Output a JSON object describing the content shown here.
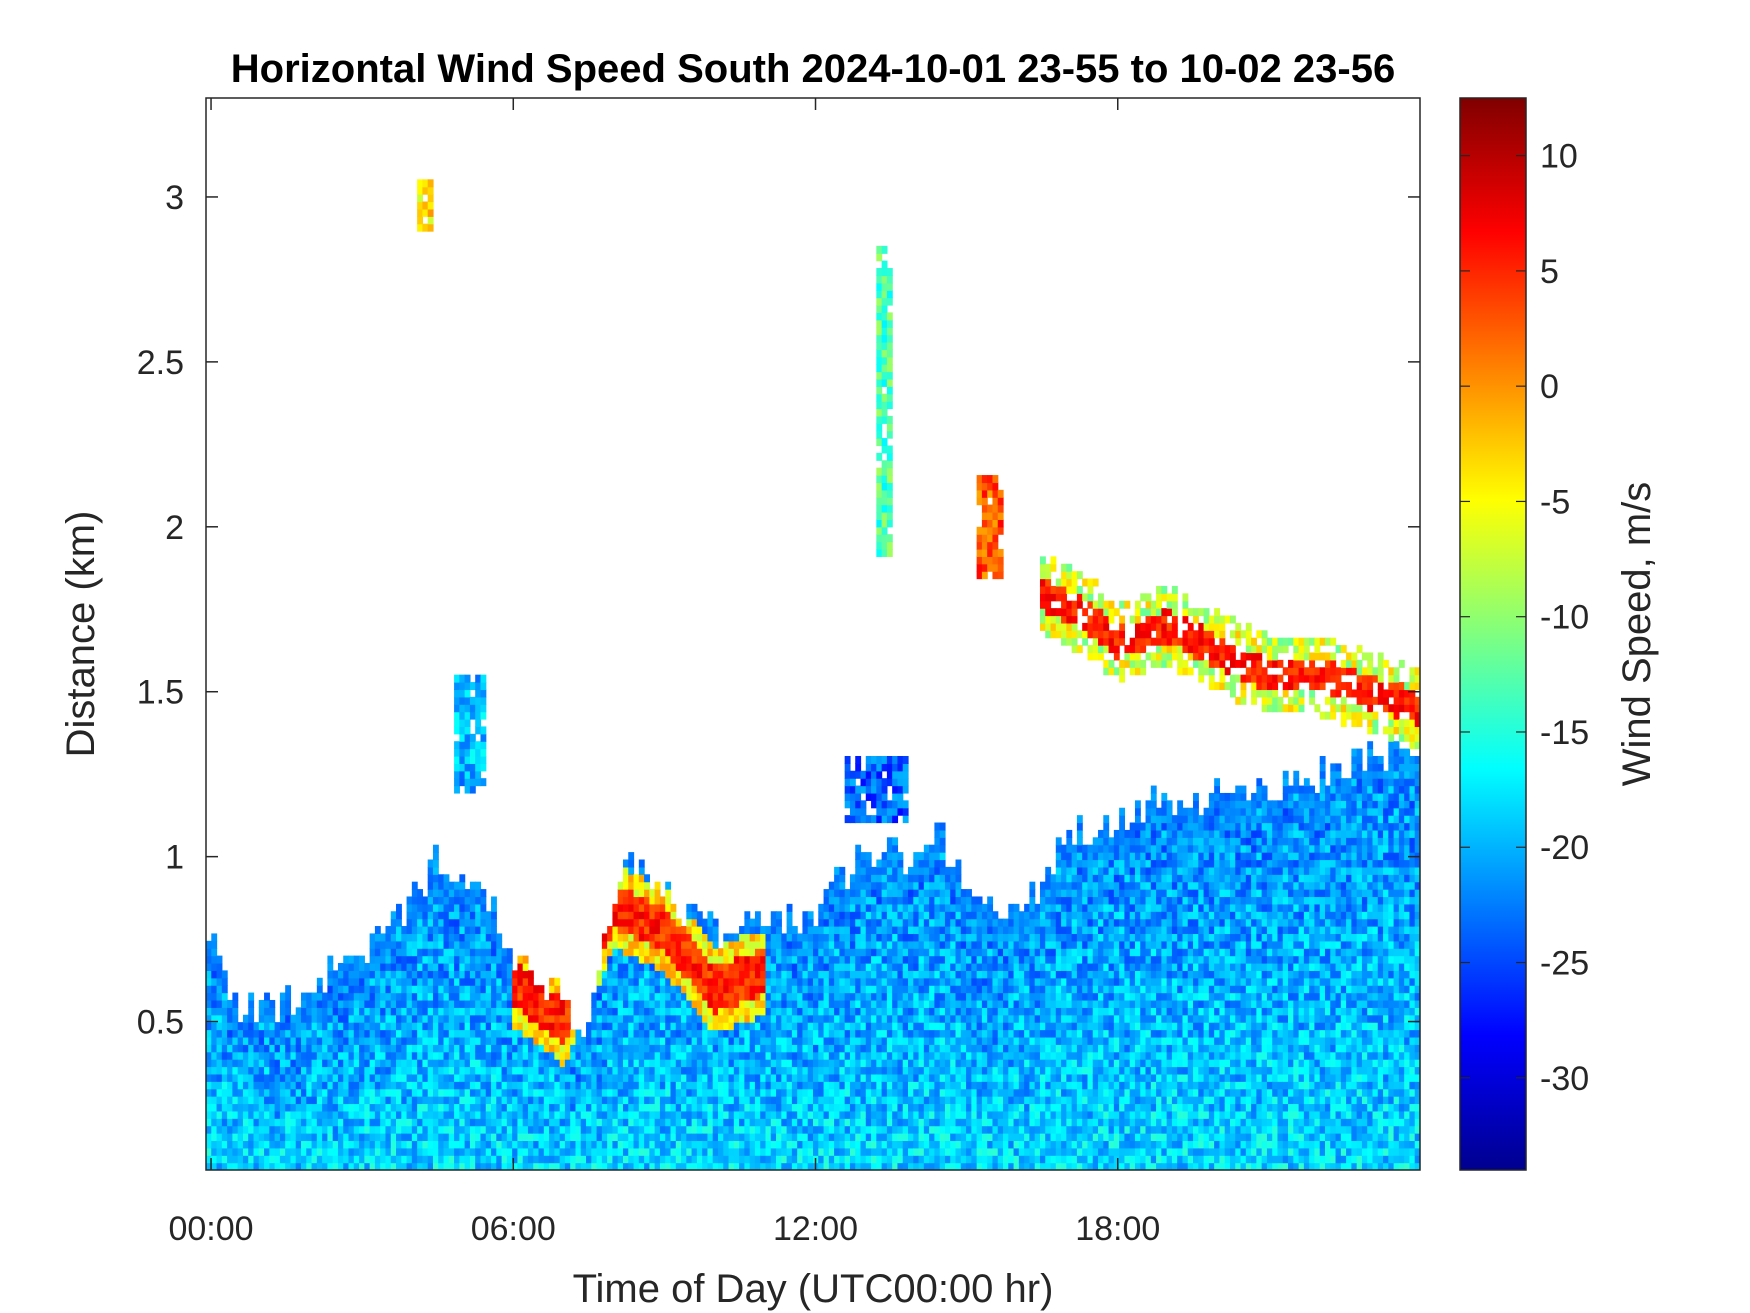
{
  "chart_data": {
    "type": "heatmap",
    "title": "Horizontal Wind Speed South 2024-10-01 23-55 to 10-02 23-56",
    "xlabel": "Time of Day (UTC00:00 hr)",
    "ylabel": "Distance (km)",
    "colorbar_label": "Wind Speed, m/s",
    "colormap": "jet",
    "x_ticks": [
      "00:00",
      "06:00",
      "12:00",
      "18:00"
    ],
    "x_tick_hours": [
      0,
      6,
      12,
      18
    ],
    "xlim_hours": [
      -0.1,
      24.0
    ],
    "y_ticks": [
      "0.5",
      "1",
      "1.5",
      "2",
      "2.5",
      "3"
    ],
    "y_tick_values": [
      0.5,
      1,
      1.5,
      2,
      2.5,
      3
    ],
    "ylim": [
      0.05,
      3.3
    ],
    "color_ticks": [
      "10",
      "5",
      "0",
      "-5",
      "-10",
      "-15",
      "-20",
      "-25",
      "-30"
    ],
    "color_tick_values": [
      10,
      5,
      0,
      -5,
      -10,
      -15,
      -20,
      -25,
      -30
    ],
    "clim": [
      -34,
      12.5
    ],
    "boundary_layer_top_km": [
      [
        0.0,
        0.72
      ],
      [
        0.5,
        0.55
      ],
      [
        1.0,
        0.52
      ],
      [
        1.5,
        0.55
      ],
      [
        2.0,
        0.6
      ],
      [
        2.5,
        0.66
      ],
      [
        3.0,
        0.72
      ],
      [
        3.5,
        0.8
      ],
      [
        4.0,
        0.87
      ],
      [
        4.5,
        1.0
      ],
      [
        5.0,
        0.97
      ],
      [
        5.5,
        0.88
      ],
      [
        6.0,
        0.7
      ],
      [
        6.5,
        0.62
      ],
      [
        7.0,
        0.55
      ],
      [
        7.5,
        0.48
      ],
      [
        8.0,
        0.9
      ],
      [
        8.5,
        1.0
      ],
      [
        9.0,
        0.9
      ],
      [
        9.5,
        0.82
      ],
      [
        10.0,
        0.78
      ],
      [
        10.5,
        0.8
      ],
      [
        11.0,
        0.84
      ],
      [
        11.5,
        0.82
      ],
      [
        12.0,
        0.85
      ],
      [
        12.5,
        0.95
      ],
      [
        13.0,
        1.0
      ],
      [
        13.5,
        1.02
      ],
      [
        14.0,
        0.98
      ],
      [
        14.5,
        1.05
      ],
      [
        15.0,
        0.95
      ],
      [
        15.5,
        0.82
      ],
      [
        16.0,
        0.88
      ],
      [
        16.5,
        0.92
      ],
      [
        17.0,
        1.05
      ],
      [
        17.5,
        1.1
      ],
      [
        18.0,
        1.12
      ],
      [
        18.5,
        1.15
      ],
      [
        19.0,
        1.15
      ],
      [
        19.5,
        1.18
      ],
      [
        20.0,
        1.2
      ],
      [
        20.5,
        1.22
      ],
      [
        21.0,
        1.2
      ],
      [
        21.5,
        1.22
      ],
      [
        22.0,
        1.25
      ],
      [
        22.5,
        1.28
      ],
      [
        23.0,
        1.3
      ],
      [
        23.5,
        1.32
      ],
      [
        24.0,
        1.32
      ]
    ],
    "fast_band_km": [
      [
        6.0,
        0.62
      ],
      [
        7.0,
        0.5
      ],
      [
        8.0,
        0.85
      ],
      [
        9.0,
        0.78
      ],
      [
        10.0,
        0.6
      ],
      [
        11.0,
        0.65
      ],
      [
        16.5,
        1.8
      ],
      [
        17.5,
        1.72
      ],
      [
        18.0,
        1.65
      ],
      [
        19.0,
        1.7
      ],
      [
        20.0,
        1.62
      ],
      [
        21.0,
        1.55
      ],
      [
        22.0,
        1.55
      ],
      [
        23.0,
        1.5
      ],
      [
        24.0,
        1.45
      ]
    ],
    "aloft_patches": [
      {
        "hour_range": [
          4.8,
          5.5
        ],
        "km_range": [
          1.2,
          1.55
        ],
        "wind_speed": -20
      },
      {
        "hour_range": [
          12.6,
          13.8
        ],
        "km_range": [
          1.1,
          1.3
        ],
        "wind_speed": -24
      },
      {
        "hour_range": [
          13.2,
          13.5
        ],
        "km_range": [
          1.9,
          2.85
        ],
        "wind_speed": -13
      },
      {
        "hour_range": [
          4.1,
          4.4
        ],
        "km_range": [
          2.9,
          3.05
        ],
        "wind_speed": -4
      },
      {
        "hour_range": [
          15.2,
          15.7
        ],
        "km_range": [
          1.85,
          2.15
        ],
        "wind_speed": 3
      }
    ]
  }
}
